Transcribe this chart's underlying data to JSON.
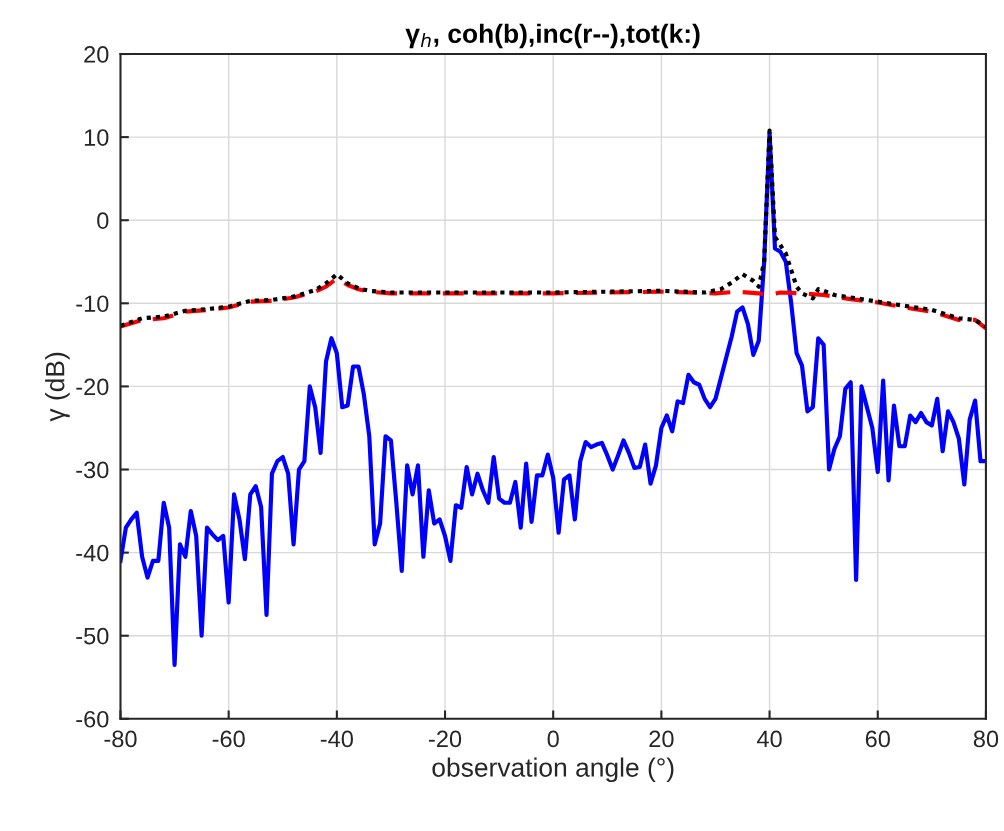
{
  "chart_data": {
    "type": "line",
    "title": "γ$_{h}$, coh(b),inc(r--),tot(k:)",
    "xlabel": "observation angle (°)",
    "ylabel": "γ (dB)",
    "xlim": [
      -80,
      80
    ],
    "xticks": [
      -80,
      -60,
      -40,
      -20,
      0,
      20,
      40,
      60,
      80
    ],
    "ylim": [
      -60,
      20
    ],
    "yticks": [
      -60,
      -50,
      -40,
      -30,
      -20,
      -10,
      0,
      10,
      20
    ],
    "grid": true,
    "marker": "none",
    "series": [
      {
        "color": "#0000ff",
        "line_style": "solid",
        "x": [
          -80,
          -79,
          -78,
          -77,
          -76,
          -75,
          -74,
          -73,
          -72,
          -71,
          -70,
          -69,
          -68,
          -67,
          -66,
          -65,
          -64,
          -63,
          -62,
          -61,
          -60,
          -59,
          -58,
          -57,
          -56,
          -55,
          -54,
          -53,
          -52,
          -51,
          -50,
          -49,
          -48,
          -47,
          -46,
          -45,
          -44,
          -43,
          -42,
          -41,
          -40,
          -39,
          -38,
          -37,
          -36,
          -35,
          -34,
          -33,
          -32,
          -31,
          -30,
          -29,
          -28,
          -27,
          -26,
          -25,
          -24,
          -23,
          -22,
          -21,
          -20,
          -19,
          -18,
          -17,
          -16,
          -15,
          -14,
          -13,
          -12,
          -11,
          -10,
          -9,
          -8,
          -7,
          -6,
          -5,
          -4,
          -3,
          -2,
          -1,
          0,
          1,
          2,
          3,
          4,
          5,
          6,
          7,
          8,
          9,
          10,
          11,
          12,
          13,
          14,
          15,
          16,
          17,
          18,
          19,
          20,
          21,
          22,
          23,
          24,
          25,
          26,
          27,
          28,
          29,
          30,
          31,
          32,
          33,
          34,
          35,
          36,
          37,
          38,
          39,
          40,
          41,
          42,
          43,
          44,
          45,
          46,
          47,
          48,
          49,
          50,
          51,
          52,
          53,
          54,
          55,
          56,
          57,
          58,
          59,
          60,
          61,
          62,
          63,
          64,
          65,
          66,
          67,
          68,
          69,
          70,
          71,
          72,
          73,
          74,
          75,
          76,
          77,
          78,
          79,
          80
        ],
        "values": [
          -41,
          -37,
          -36,
          -35.2,
          -40.5,
          -43,
          -41,
          -41,
          -34,
          -37,
          -53.5,
          -39,
          -40.5,
          -35,
          -38,
          -50,
          -37,
          -37.8,
          -38.5,
          -38,
          -46,
          -33,
          -36,
          -40.8,
          -33,
          -32,
          -34.5,
          -47.5,
          -30.5,
          -29,
          -28.5,
          -30.5,
          -39,
          -30,
          -29,
          -20,
          -22.5,
          -28,
          -17,
          -14.2,
          -16,
          -22.5,
          -22.3,
          -17.6,
          -17.6,
          -21,
          -26,
          -39,
          -36.5,
          -26,
          -26.5,
          -34,
          -42.2,
          -29.5,
          -33,
          -29.5,
          -40.5,
          -32.5,
          -36.5,
          -36,
          -38,
          -41,
          -34.3,
          -34.6,
          -29.7,
          -33,
          -30.5,
          -32.5,
          -34,
          -28.5,
          -33.5,
          -34,
          -34,
          -31.5,
          -37,
          -29.3,
          -36.3,
          -30.7,
          -30.7,
          -28.2,
          -31,
          -37.6,
          -31.2,
          -30.7,
          -36,
          -29,
          -26.7,
          -27.3,
          -27,
          -26.8,
          -28.3,
          -30,
          -28.3,
          -26.5,
          -28,
          -29.8,
          -29.7,
          -27,
          -31.7,
          -29.5,
          -25,
          -23.5,
          -25.4,
          -21.8,
          -22,
          -18.6,
          -19.5,
          -19.8,
          -21.5,
          -22.5,
          -21.5,
          -19,
          -16.5,
          -14,
          -11,
          -10.5,
          -12.5,
          -16.2,
          -14.5,
          -5,
          10.5,
          -3.4,
          -3.8,
          -5,
          -10,
          -16,
          -17.5,
          -23,
          -22.5,
          -14.2,
          -15,
          -30,
          -27.5,
          -26,
          -20.3,
          -19.5,
          -43.3,
          -20,
          -22.5,
          -25,
          -30.3,
          -19.3,
          -31.3,
          -22.3,
          -27.2,
          -27.2,
          -23.5,
          -24.3,
          -23.2,
          -24.3,
          -24.7,
          -21.5,
          -27.8,
          -23,
          -24.3,
          -26.3,
          -31.8,
          -24,
          -21.7,
          -29,
          -29
        ]
      },
      {
        "color": "#ff0000",
        "line_style": "dashed",
        "x": [
          -80,
          -76,
          -72,
          -68,
          -64,
          -60,
          -56,
          -52,
          -48,
          -44,
          -42,
          -40,
          -38,
          -36,
          -34,
          -30,
          -20,
          -10,
          0,
          10,
          20,
          30,
          34,
          38,
          40,
          42,
          46,
          50,
          55,
          60,
          65,
          70,
          75,
          78,
          80
        ],
        "values": [
          -12.8,
          -12,
          -11.8,
          -11,
          -10.8,
          -10.5,
          -9.8,
          -9.7,
          -9.3,
          -8.6,
          -8,
          -7,
          -7.8,
          -8.3,
          -8.6,
          -8.8,
          -8.8,
          -8.8,
          -8.8,
          -8.7,
          -8.6,
          -8.8,
          -8.6,
          -8.8,
          -9,
          -8.7,
          -8.8,
          -9,
          -9.5,
          -9.9,
          -10.5,
          -11,
          -12,
          -12,
          -13
        ]
      },
      {
        "color": "#000000",
        "line_style": "dotted",
        "x": [
          -80,
          -76,
          -72,
          -68,
          -64,
          -60,
          -56,
          -52,
          -48,
          -44,
          -42,
          -40,
          -38,
          -36,
          -34,
          -30,
          -20,
          -10,
          0,
          10,
          20,
          28,
          31,
          33,
          35,
          37,
          38,
          39,
          40,
          41,
          42,
          43,
          44,
          45,
          46,
          48,
          49,
          50,
          52,
          55,
          60,
          65,
          70,
          75,
          78,
          80
        ],
        "values": [
          -12.7,
          -11.8,
          -11.6,
          -10.9,
          -10.7,
          -10.4,
          -9.7,
          -9.6,
          -9.2,
          -8.4,
          -7.6,
          -6.5,
          -7.6,
          -8.2,
          -8.5,
          -8.7,
          -8.7,
          -8.7,
          -8.7,
          -8.6,
          -8.5,
          -8.7,
          -8.3,
          -7.5,
          -6.5,
          -7.3,
          -8,
          -5,
          10.8,
          -2,
          -3,
          -4,
          -6,
          -8,
          -8.8,
          -9.4,
          -8.3,
          -8.5,
          -9,
          -9.3,
          -9.8,
          -10.3,
          -10.8,
          -11.8,
          -12,
          -12.8
        ]
      }
    ]
  }
}
